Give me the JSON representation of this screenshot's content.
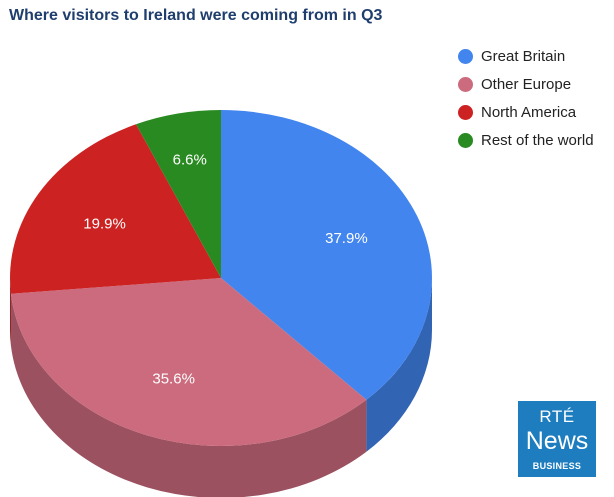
{
  "chart_data": {
    "type": "pie",
    "title": "Where visitors to Ireland were coming from in Q3",
    "categories": [
      "Great Britain",
      "Other Europe",
      "North America",
      "Rest of the world"
    ],
    "values": [
      37.9,
      35.6,
      19.9,
      6.6
    ],
    "labels": [
      "37.9%",
      "35.6%",
      "19.9%",
      "6.6%"
    ],
    "colors": [
      "#4285ee",
      "#cc6b7d",
      "#cc2222",
      "#2a8a22"
    ],
    "side_colors": [
      "#3264b4",
      "#9c5160",
      "#8c1818",
      "#1c5c16"
    ],
    "legend_position": "top-right",
    "three_d": true,
    "legend": [
      {
        "label": "Great Britain",
        "color": "#4285ee"
      },
      {
        "label": "Other Europe",
        "color": "#cc6b7d"
      },
      {
        "label": "North America",
        "color": "#cc2222"
      },
      {
        "label": "Rest of the world",
        "color": "#2a8a22"
      }
    ]
  },
  "logo": {
    "line1": "RTÉ",
    "line2": "News",
    "line3": "BUSINESS",
    "color": "#1d7dbf"
  }
}
